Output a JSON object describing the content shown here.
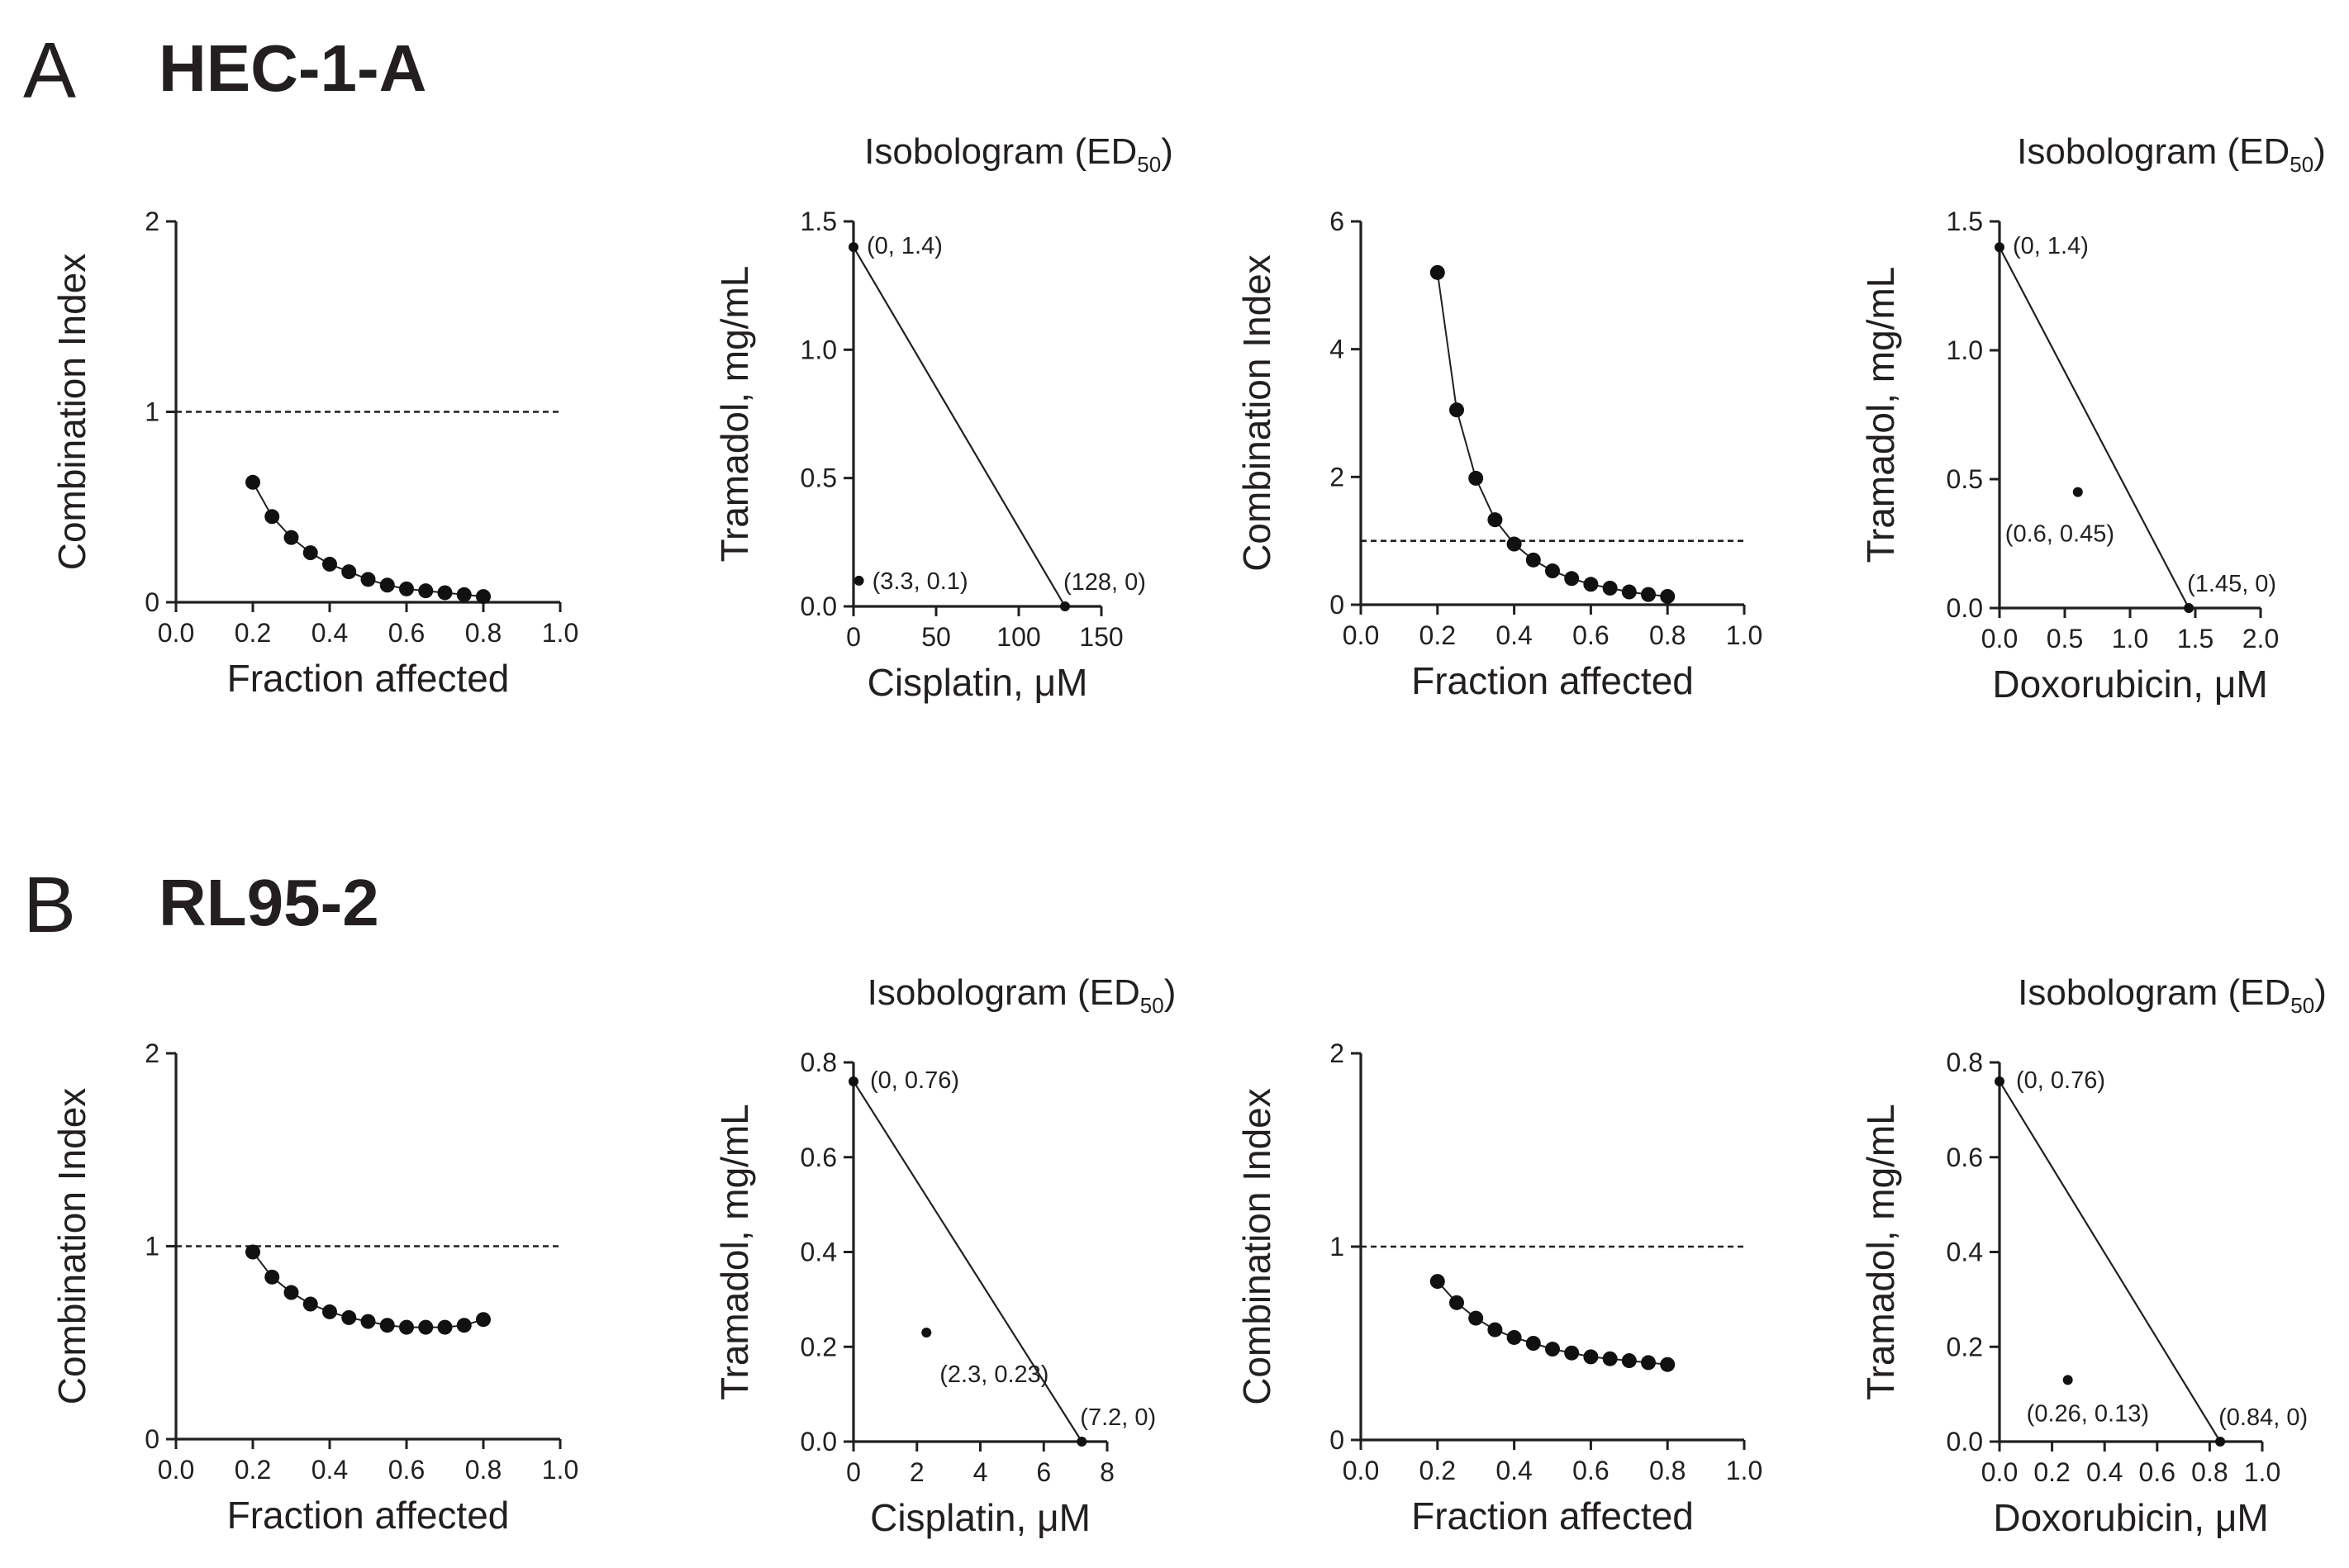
{
  "figure": {
    "panels": [
      {
        "letter": "A",
        "cell_line": "HEC-1-A"
      },
      {
        "letter": "B",
        "cell_line": "RL95-2"
      }
    ]
  },
  "chart_data": [
    {
      "id": "A1",
      "type": "line",
      "xlabel": "Fraction affected",
      "ylabel": "Combination Index",
      "xlim": [
        0.0,
        1.0
      ],
      "ylim": [
        0,
        2
      ],
      "xticks": [
        "0.0",
        "0.2",
        "0.4",
        "0.6",
        "0.8",
        "1.0"
      ],
      "yticks": [
        "0",
        "1",
        "2"
      ],
      "reference_line_y": 1,
      "x": [
        0.2,
        0.25,
        0.3,
        0.35,
        0.4,
        0.45,
        0.5,
        0.55,
        0.6,
        0.65,
        0.7,
        0.75,
        0.8
      ],
      "y": [
        0.63,
        0.45,
        0.34,
        0.26,
        0.2,
        0.16,
        0.12,
        0.09,
        0.07,
        0.06,
        0.05,
        0.04,
        0.03
      ]
    },
    {
      "id": "A2",
      "type": "scatter",
      "subtype": "isobologram",
      "title": "Isobologram (ED",
      "title_sub": "50",
      "title_end": ")",
      "xlabel": "Cisplatin, μM",
      "ylabel": "Tramadol, mg/mL",
      "xlim": [
        0,
        150
      ],
      "ylim": [
        0,
        1.5
      ],
      "xticks": [
        "0",
        "50",
        "100",
        "150"
      ],
      "yticks": [
        "0.0",
        "0.5",
        "1.0",
        "1.5"
      ],
      "additivity_line": [
        [
          0,
          1.4
        ],
        [
          128,
          0
        ]
      ],
      "points": [
        {
          "x": 0,
          "y": 1.4,
          "label": "(0, 1.4)"
        },
        {
          "x": 128,
          "y": 0,
          "label": "(128, 0)"
        },
        {
          "x": 3.3,
          "y": 0.1,
          "label": "(3.3, 0.1)"
        }
      ]
    },
    {
      "id": "A3",
      "type": "line",
      "xlabel": "Fraction affected",
      "ylabel": "Combination Index",
      "xlim": [
        0.0,
        1.0
      ],
      "ylim": [
        0,
        6
      ],
      "xticks": [
        "0.0",
        "0.2",
        "0.4",
        "0.6",
        "0.8",
        "1.0"
      ],
      "yticks": [
        "0",
        "2",
        "4",
        "6"
      ],
      "reference_line_y": 1,
      "x": [
        0.2,
        0.25,
        0.3,
        0.35,
        0.4,
        0.45,
        0.5,
        0.55,
        0.6,
        0.65,
        0.7,
        0.75,
        0.8
      ],
      "y": [
        5.2,
        3.05,
        1.98,
        1.33,
        0.95,
        0.7,
        0.53,
        0.41,
        0.32,
        0.26,
        0.2,
        0.16,
        0.13
      ]
    },
    {
      "id": "A4",
      "type": "scatter",
      "subtype": "isobologram",
      "title": "Isobologram (ED",
      "title_sub": "50",
      "title_end": ")",
      "xlabel": "Doxorubicin, μM",
      "ylabel": "Tramadol, mg/mL",
      "xlim": [
        0,
        2.0
      ],
      "ylim": [
        0,
        1.5
      ],
      "xticks": [
        "0.0",
        "0.5",
        "1.0",
        "1.5",
        "2.0"
      ],
      "yticks": [
        "0.0",
        "0.5",
        "1.0",
        "1.5"
      ],
      "additivity_line": [
        [
          0,
          1.4
        ],
        [
          1.45,
          0
        ]
      ],
      "points": [
        {
          "x": 0,
          "y": 1.4,
          "label": "(0, 1.4)"
        },
        {
          "x": 1.45,
          "y": 0,
          "label": "(1.45, 0)"
        },
        {
          "x": 0.6,
          "y": 0.45,
          "label": "(0.6, 0.45)"
        }
      ]
    },
    {
      "id": "B1",
      "type": "line",
      "xlabel": "Fraction affected",
      "ylabel": "Combination Index",
      "xlim": [
        0.0,
        1.0
      ],
      "ylim": [
        0,
        2
      ],
      "xticks": [
        "0.0",
        "0.2",
        "0.4",
        "0.6",
        "0.8",
        "1.0"
      ],
      "yticks": [
        "0",
        "1",
        "2"
      ],
      "reference_line_y": 1,
      "x": [
        0.2,
        0.25,
        0.3,
        0.35,
        0.4,
        0.45,
        0.5,
        0.55,
        0.6,
        0.65,
        0.7,
        0.75,
        0.8
      ],
      "y": [
        0.97,
        0.84,
        0.76,
        0.7,
        0.66,
        0.63,
        0.61,
        0.59,
        0.58,
        0.58,
        0.58,
        0.59,
        0.62
      ]
    },
    {
      "id": "B2",
      "type": "scatter",
      "subtype": "isobologram",
      "title": "Isobologram (ED",
      "title_sub": "50",
      "title_end": ")",
      "xlabel": "Cisplatin, μM",
      "ylabel": "Tramadol, mg/mL",
      "xlim": [
        0,
        8
      ],
      "ylim": [
        0,
        0.8
      ],
      "xticks": [
        "0",
        "2",
        "4",
        "6",
        "8"
      ],
      "yticks": [
        "0.0",
        "0.2",
        "0.4",
        "0.6",
        "0.8"
      ],
      "additivity_line": [
        [
          0,
          0.76
        ],
        [
          7.2,
          0
        ]
      ],
      "points": [
        {
          "x": 0,
          "y": 0.76,
          "label": "(0, 0.76)"
        },
        {
          "x": 7.2,
          "y": 0,
          "label": "(7.2, 0)"
        },
        {
          "x": 2.3,
          "y": 0.23,
          "label": "(2.3, 0.23)"
        }
      ]
    },
    {
      "id": "B3",
      "type": "line",
      "xlabel": "Fraction affected",
      "ylabel": "Combination Index",
      "xlim": [
        0.0,
        1.0
      ],
      "ylim": [
        0,
        2
      ],
      "xticks": [
        "0.0",
        "0.2",
        "0.4",
        "0.6",
        "0.8",
        "1.0"
      ],
      "yticks": [
        "0",
        "1",
        "2"
      ],
      "reference_line_y": 1,
      "x": [
        0.2,
        0.25,
        0.3,
        0.35,
        0.4,
        0.45,
        0.5,
        0.55,
        0.6,
        0.65,
        0.7,
        0.75,
        0.8
      ],
      "y": [
        0.82,
        0.71,
        0.63,
        0.57,
        0.53,
        0.5,
        0.47,
        0.45,
        0.43,
        0.42,
        0.41,
        0.4,
        0.39
      ]
    },
    {
      "id": "B4",
      "type": "scatter",
      "subtype": "isobologram",
      "title": "Isobologram (ED",
      "title_sub": "50",
      "title_end": ")",
      "xlabel": "Doxorubicin, μM",
      "ylabel": "Tramadol, mg/mL",
      "xlim": [
        0,
        1.0
      ],
      "ylim": [
        0,
        0.8
      ],
      "xticks": [
        "0.0",
        "0.2",
        "0.4",
        "0.6",
        "0.8",
        "1.0"
      ],
      "yticks": [
        "0.0",
        "0.2",
        "0.4",
        "0.6",
        "0.8"
      ],
      "additivity_line": [
        [
          0,
          0.76
        ],
        [
          0.84,
          0
        ]
      ],
      "points": [
        {
          "x": 0,
          "y": 0.76,
          "label": "(0, 0.76)"
        },
        {
          "x": 0.84,
          "y": 0,
          "label": "(0.84, 0)"
        },
        {
          "x": 0.26,
          "y": 0.13,
          "label": "(0.26, 0.13)"
        }
      ]
    }
  ]
}
